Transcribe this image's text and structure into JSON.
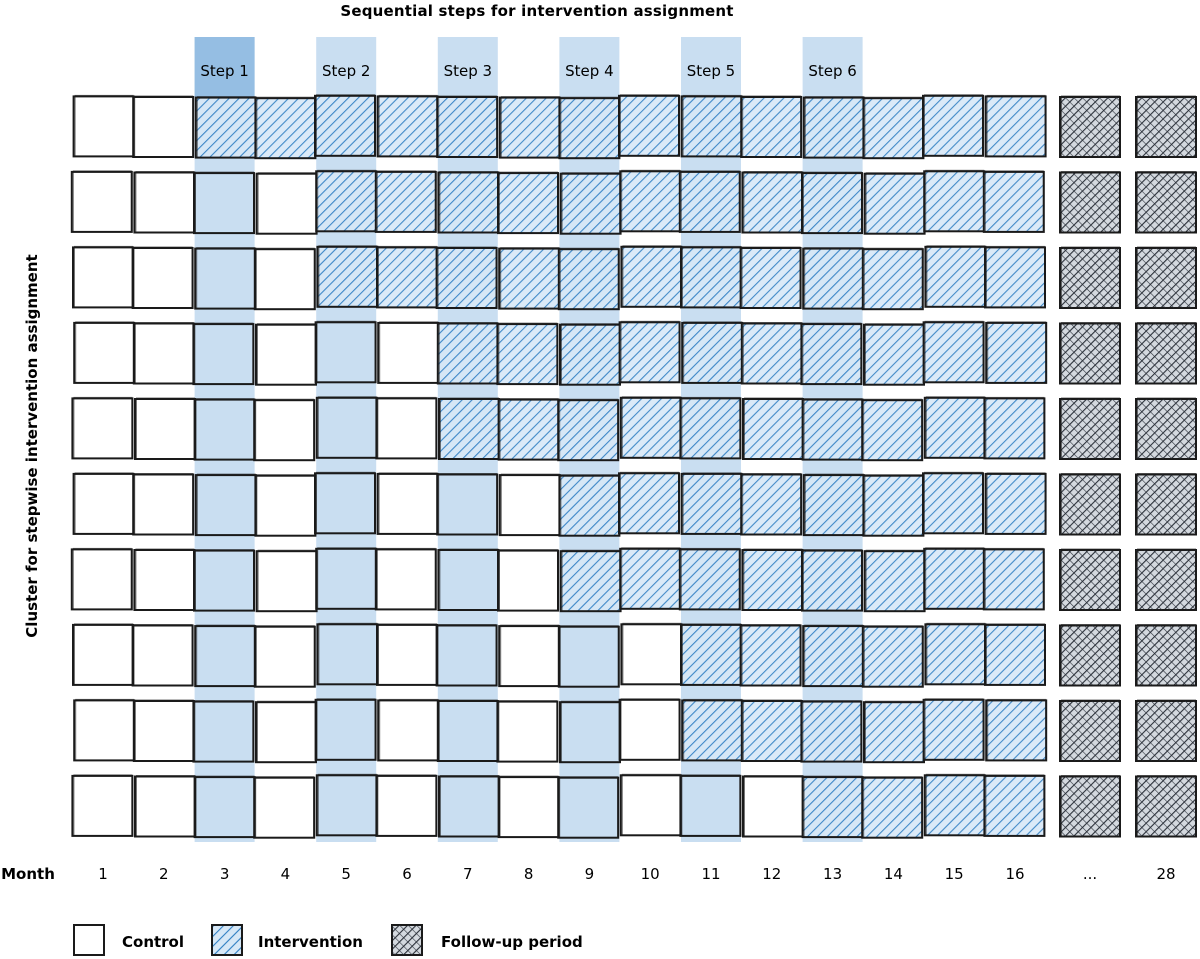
{
  "title": "Sequential steps for intervention assignment",
  "y_axis_label": "Cluster for stepwise intervention assignment",
  "month_header": "Month",
  "steps": [
    {
      "label": "Step 1",
      "month": 3
    },
    {
      "label": "Step 2",
      "month": 5
    },
    {
      "label": "Step 3",
      "month": 7
    },
    {
      "label": "Step 4",
      "month": 9
    },
    {
      "label": "Step 5",
      "month": 11
    },
    {
      "label": "Step 6",
      "month": 13
    }
  ],
  "month_labels": [
    "1",
    "2",
    "3",
    "4",
    "5",
    "6",
    "7",
    "8",
    "9",
    "10",
    "11",
    "12",
    "13",
    "14",
    "15",
    "16"
  ],
  "ellipsis_label": "...",
  "final_month_label": "28",
  "clusters": [
    {
      "cluster": 1,
      "intervention_start_month": 3
    },
    {
      "cluster": 2,
      "intervention_start_month": 5
    },
    {
      "cluster": 3,
      "intervention_start_month": 5
    },
    {
      "cluster": 4,
      "intervention_start_month": 7
    },
    {
      "cluster": 5,
      "intervention_start_month": 7
    },
    {
      "cluster": 6,
      "intervention_start_month": 9
    },
    {
      "cluster": 7,
      "intervention_start_month": 9
    },
    {
      "cluster": 8,
      "intervention_start_month": 11
    },
    {
      "cluster": 9,
      "intervention_start_month": 11
    },
    {
      "cluster": 10,
      "intervention_start_month": 13
    }
  ],
  "legend": [
    {
      "key": "control",
      "label": "Control"
    },
    {
      "key": "intervention",
      "label": "Intervention"
    },
    {
      "key": "followup",
      "label": "Follow-up period"
    }
  ],
  "colors": {
    "intervention_hatch": "#2f7ec2",
    "intervention_fill": "#cfe3f5",
    "step_band": "#9cc3e6",
    "step1_label_bg": "#7fb0dd",
    "followup_hatch": "#333a44",
    "followup_fill": "#d8dde3",
    "outline": "#1a1a1a"
  }
}
